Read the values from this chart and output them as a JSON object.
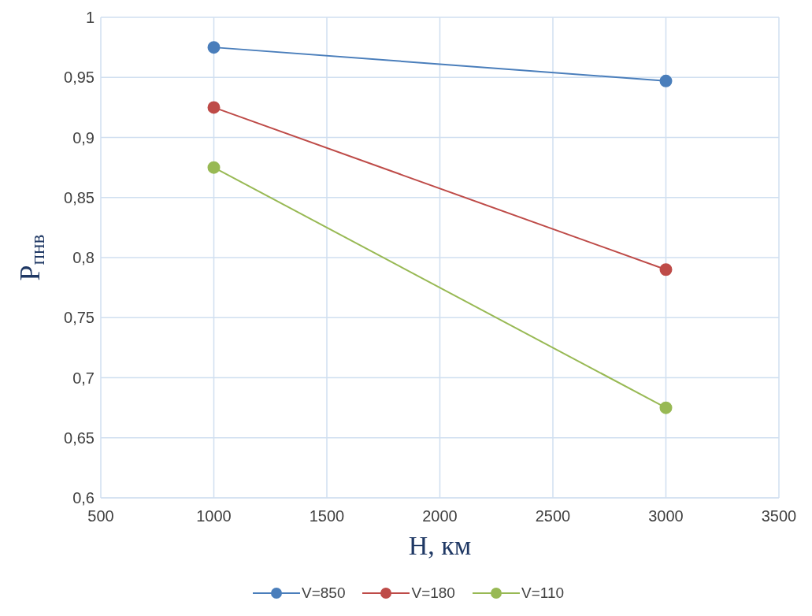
{
  "chart_data": {
    "type": "line",
    "xlabel": "H, км",
    "ylabel": "P$_{пнв}$",
    "x": [
      1000,
      3000
    ],
    "series": [
      {
        "name": "V=850",
        "color": "#4a7ebb",
        "values": [
          0.975,
          0.947
        ]
      },
      {
        "name": "V=180",
        "color": "#be4b48",
        "values": [
          0.925,
          0.79
        ]
      },
      {
        "name": "V=110",
        "color": "#98b954",
        "values": [
          0.875,
          0.675
        ]
      }
    ],
    "xlim": [
      500,
      3500
    ],
    "xticks": [
      500,
      1000,
      1500,
      2000,
      2500,
      3000,
      3500
    ],
    "ylim": [
      0.6,
      1
    ],
    "yticks": [
      {
        "value": 0.6,
        "label": "0,6"
      },
      {
        "value": 0.65,
        "label": "0,65"
      },
      {
        "value": 0.7,
        "label": "0,7"
      },
      {
        "value": 0.75,
        "label": "0,75"
      },
      {
        "value": 0.8,
        "label": "0,8"
      },
      {
        "value": 0.85,
        "label": "0,85"
      },
      {
        "value": 0.9,
        "label": "0,9"
      },
      {
        "value": 0.95,
        "label": "0,95"
      },
      {
        "value": 1,
        "label": "1"
      }
    ],
    "grid": true,
    "legend": "bottom",
    "marker": "circle",
    "line_style": "solid"
  }
}
